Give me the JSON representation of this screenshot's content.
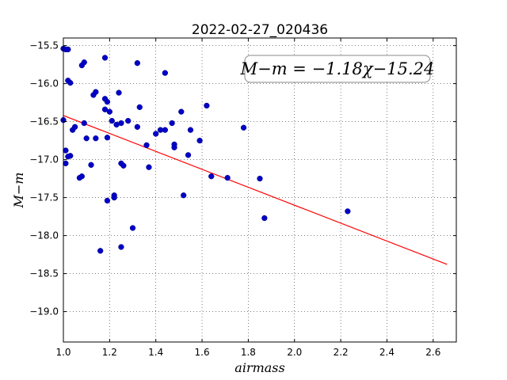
{
  "chart_data": {
    "type": "scatter",
    "title": "2022-02-27_020436",
    "xlabel": "airmass",
    "ylabel": "M−m",
    "xlim": [
      1.0,
      2.7
    ],
    "ylim": [
      -15.4,
      -19.4
    ],
    "y_inverted": true,
    "xticks": [
      "1.0",
      "1.2",
      "1.4",
      "1.6",
      "1.8",
      "2.0",
      "2.2",
      "2.4",
      "2.6"
    ],
    "yticks": [
      "−15.5",
      "−16.0",
      "−16.5",
      "−17.0",
      "−17.5",
      "−18.0",
      "−18.5",
      "−19.0"
    ],
    "xtick_values": [
      1.0,
      1.2,
      1.4,
      1.6,
      1.8,
      2.0,
      2.2,
      2.4,
      2.6
    ],
    "ytick_values": [
      -15.5,
      -16.0,
      -16.5,
      -17.0,
      -17.5,
      -18.0,
      -18.5,
      -19.0
    ],
    "grid": true,
    "annotation": "M−m = −1.18χ−15.24",
    "point_color": "#0000c8",
    "fit_color": "#ff0000",
    "fit": {
      "slope": -1.18,
      "intercept": -15.24,
      "x_start": 1.0,
      "x_end": 2.66
    },
    "points": [
      {
        "x": 1.0,
        "y": -16.48
      },
      {
        "x": 1.0,
        "y": -15.54
      },
      {
        "x": 1.01,
        "y": -15.55
      },
      {
        "x": 1.02,
        "y": -15.55
      },
      {
        "x": 1.02,
        "y": -15.96
      },
      {
        "x": 1.03,
        "y": -15.99
      },
      {
        "x": 1.01,
        "y": -16.88
      },
      {
        "x": 1.02,
        "y": -16.96
      },
      {
        "x": 1.03,
        "y": -16.95
      },
      {
        "x": 1.01,
        "y": -17.05
      },
      {
        "x": 1.04,
        "y": -16.61
      },
      {
        "x": 1.05,
        "y": -16.57
      },
      {
        "x": 1.08,
        "y": -15.76
      },
      {
        "x": 1.09,
        "y": -15.72
      },
      {
        "x": 1.09,
        "y": -16.52
      },
      {
        "x": 1.1,
        "y": -16.72
      },
      {
        "x": 1.07,
        "y": -17.24
      },
      {
        "x": 1.08,
        "y": -17.22
      },
      {
        "x": 1.12,
        "y": -17.07
      },
      {
        "x": 1.13,
        "y": -16.15
      },
      {
        "x": 1.14,
        "y": -16.11
      },
      {
        "x": 1.14,
        "y": -16.72
      },
      {
        "x": 1.18,
        "y": -15.66
      },
      {
        "x": 1.18,
        "y": -16.2
      },
      {
        "x": 1.19,
        "y": -16.24
      },
      {
        "x": 1.18,
        "y": -16.34
      },
      {
        "x": 1.2,
        "y": -16.37
      },
      {
        "x": 1.19,
        "y": -16.71
      },
      {
        "x": 1.21,
        "y": -16.49
      },
      {
        "x": 1.23,
        "y": -16.54
      },
      {
        "x": 1.24,
        "y": -16.12
      },
      {
        "x": 1.25,
        "y": -16.52
      },
      {
        "x": 1.19,
        "y": -17.54
      },
      {
        "x": 1.22,
        "y": -17.47
      },
      {
        "x": 1.22,
        "y": -17.5
      },
      {
        "x": 1.25,
        "y": -17.05
      },
      {
        "x": 1.26,
        "y": -17.08
      },
      {
        "x": 1.28,
        "y": -16.49
      },
      {
        "x": 1.16,
        "y": -18.2
      },
      {
        "x": 1.25,
        "y": -18.15
      },
      {
        "x": 1.3,
        "y": -17.9
      },
      {
        "x": 1.32,
        "y": -15.73
      },
      {
        "x": 1.32,
        "y": -16.57
      },
      {
        "x": 1.33,
        "y": -16.31
      },
      {
        "x": 1.36,
        "y": -16.81
      },
      {
        "x": 1.37,
        "y": -17.1
      },
      {
        "x": 1.4,
        "y": -16.66
      },
      {
        "x": 1.42,
        "y": -16.61
      },
      {
        "x": 1.44,
        "y": -16.61
      },
      {
        "x": 1.44,
        "y": -15.86
      },
      {
        "x": 1.47,
        "y": -16.52
      },
      {
        "x": 1.48,
        "y": -16.8
      },
      {
        "x": 1.48,
        "y": -16.84
      },
      {
        "x": 1.51,
        "y": -16.37
      },
      {
        "x": 1.52,
        "y": -17.47
      },
      {
        "x": 1.54,
        "y": -16.94
      },
      {
        "x": 1.55,
        "y": -16.61
      },
      {
        "x": 1.59,
        "y": -16.75
      },
      {
        "x": 1.62,
        "y": -16.29
      },
      {
        "x": 1.64,
        "y": -17.22
      },
      {
        "x": 1.71,
        "y": -17.24
      },
      {
        "x": 1.78,
        "y": -16.58
      },
      {
        "x": 1.85,
        "y": -17.25
      },
      {
        "x": 1.87,
        "y": -17.77
      },
      {
        "x": 2.23,
        "y": -17.68
      }
    ]
  }
}
